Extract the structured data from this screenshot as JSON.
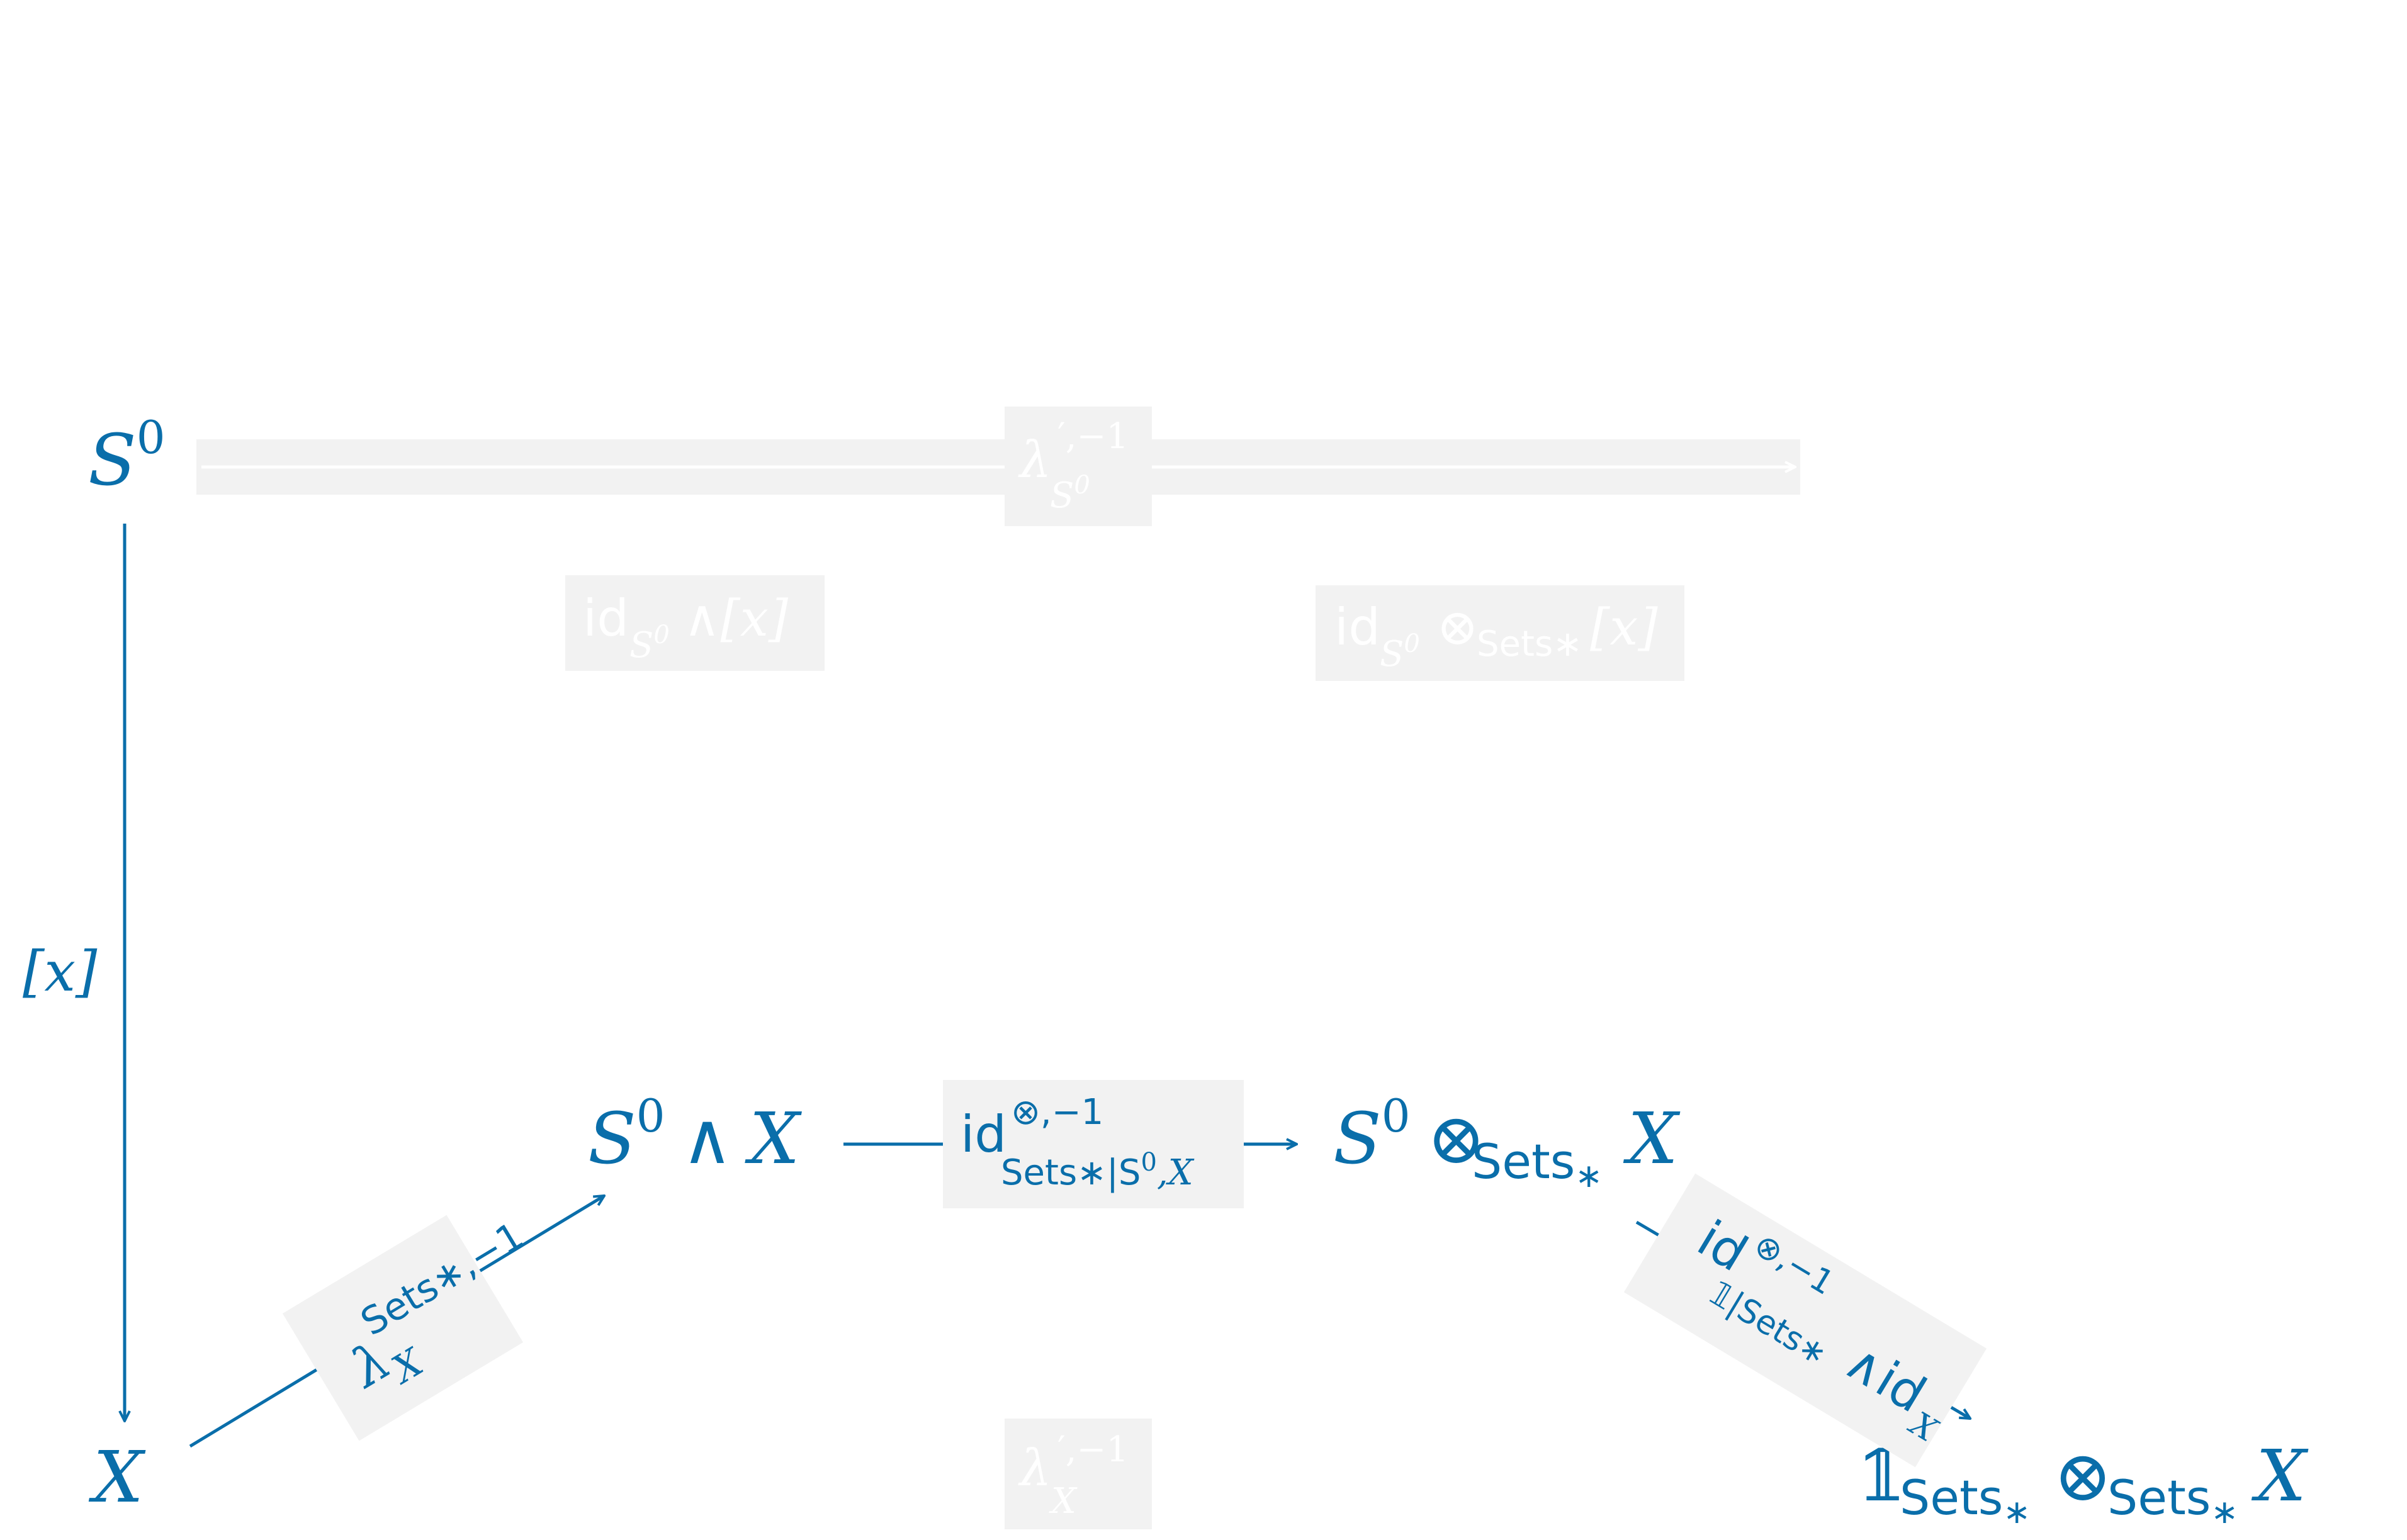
{
  "colors": {
    "primary": "#0A6EAA",
    "faded_text": "#ffffff",
    "label_bg": "#f2f2f2"
  },
  "nodes": {
    "s0": {
      "base": "S",
      "sup": "0"
    },
    "x_left": {
      "text": "X"
    },
    "s0_smash_x": {
      "base": "S",
      "sup": "0",
      "op": "∧",
      "var": "X"
    },
    "s0_tensor_x": {
      "base": "S",
      "sup": "0",
      "op": "⊗",
      "sub": "Sets",
      "sub_star": "∗",
      "var": "X"
    },
    "unit_tensor_x": {
      "unit": "𝟙",
      "sub": "Sets",
      "sub_star": "∗",
      "op": "⊗",
      "sub2": "Sets",
      "sub2_star": "∗",
      "var": "X"
    }
  },
  "labels": {
    "x_bracket": "[x]",
    "lambda_prime_s0": {
      "base": "λ",
      "sup": "′,−1",
      "sub": "S",
      "sub_sup": "0"
    },
    "id_s0_smash_x": {
      "id": "id",
      "sub": "S",
      "sub_sup": "0",
      "rest": "∧[x]"
    },
    "id_s0_tensor_x": {
      "id": "id",
      "sub": "S",
      "sub_sup": "0",
      "op": "⊗",
      "op_sub": "Sets",
      "op_sub_star": "∗",
      "rest": "[x]"
    },
    "lambda_sets_x": {
      "base": "λ",
      "sup": "Sets∗,−1",
      "sub": "X"
    },
    "id_tensor_sets": {
      "id": "id",
      "sup": "⊗,−1",
      "sub": "Sets∗|S",
      "sub_sup": "0",
      "sub_rest": ",X"
    },
    "id_tensor_unit": {
      "id": "id",
      "sup": "⊗,−1",
      "sub": "𝟙|Sets∗",
      "rest": "∧id",
      "rest_sub": "X"
    },
    "lambda_prime_x": {
      "base": "λ",
      "sup": "′,−1",
      "sub": "X"
    }
  }
}
